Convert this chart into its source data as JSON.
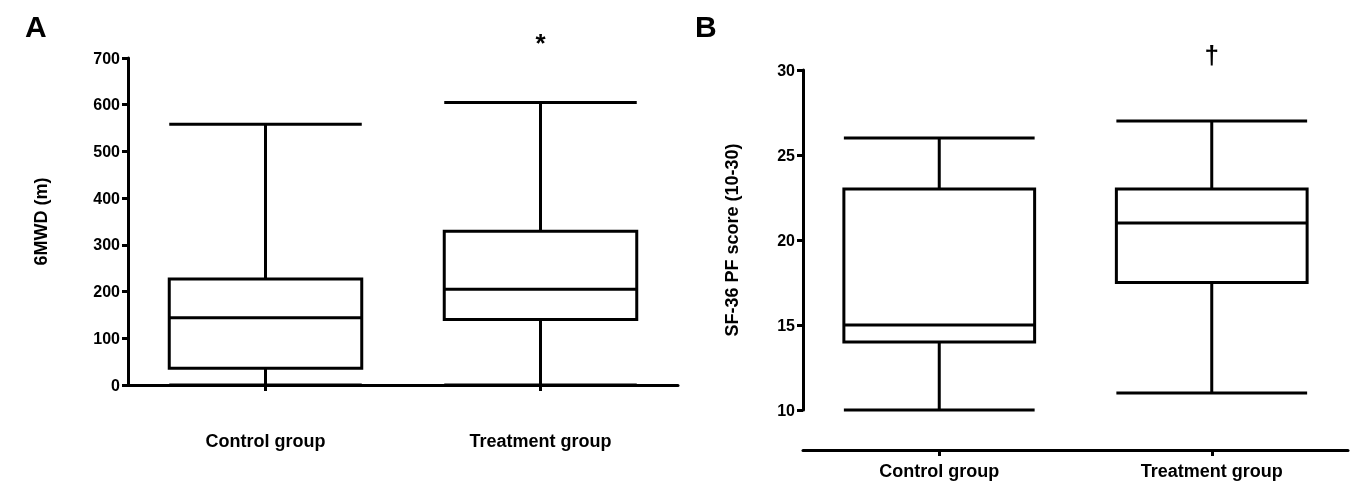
{
  "chart_data": [
    {
      "type": "box",
      "title": "A",
      "ylabel": "6MWD (m)",
      "categories": [
        "Control group",
        "Treatment group"
      ],
      "color": "#000000",
      "boxes": [
        {
          "low": 0,
          "q1": 36,
          "median": 144,
          "q3": 227,
          "high": 558
        },
        {
          "low": 0,
          "q1": 140,
          "median": 205,
          "q3": 329,
          "high": 605
        }
      ],
      "ylim": [
        0,
        700
      ],
      "yticks": [
        0,
        100,
        200,
        300,
        400,
        500,
        600,
        700
      ],
      "annotations": [
        "*"
      ]
    },
    {
      "type": "box",
      "title": "B",
      "ylabel": "SF-36 PF score (10-30)",
      "categories": [
        "Control group",
        "Treatment group"
      ],
      "color": "#000000",
      "boxes": [
        {
          "low": 10,
          "q1": 14,
          "median": 15,
          "q3": 23,
          "high": 26
        },
        {
          "low": 11,
          "q1": 17.5,
          "median": 21,
          "q3": 23,
          "high": 27
        }
      ],
      "ylim": [
        10,
        30
      ],
      "yticks": [
        10,
        15,
        20,
        25,
        30
      ],
      "annotations": [
        "†"
      ]
    }
  ]
}
